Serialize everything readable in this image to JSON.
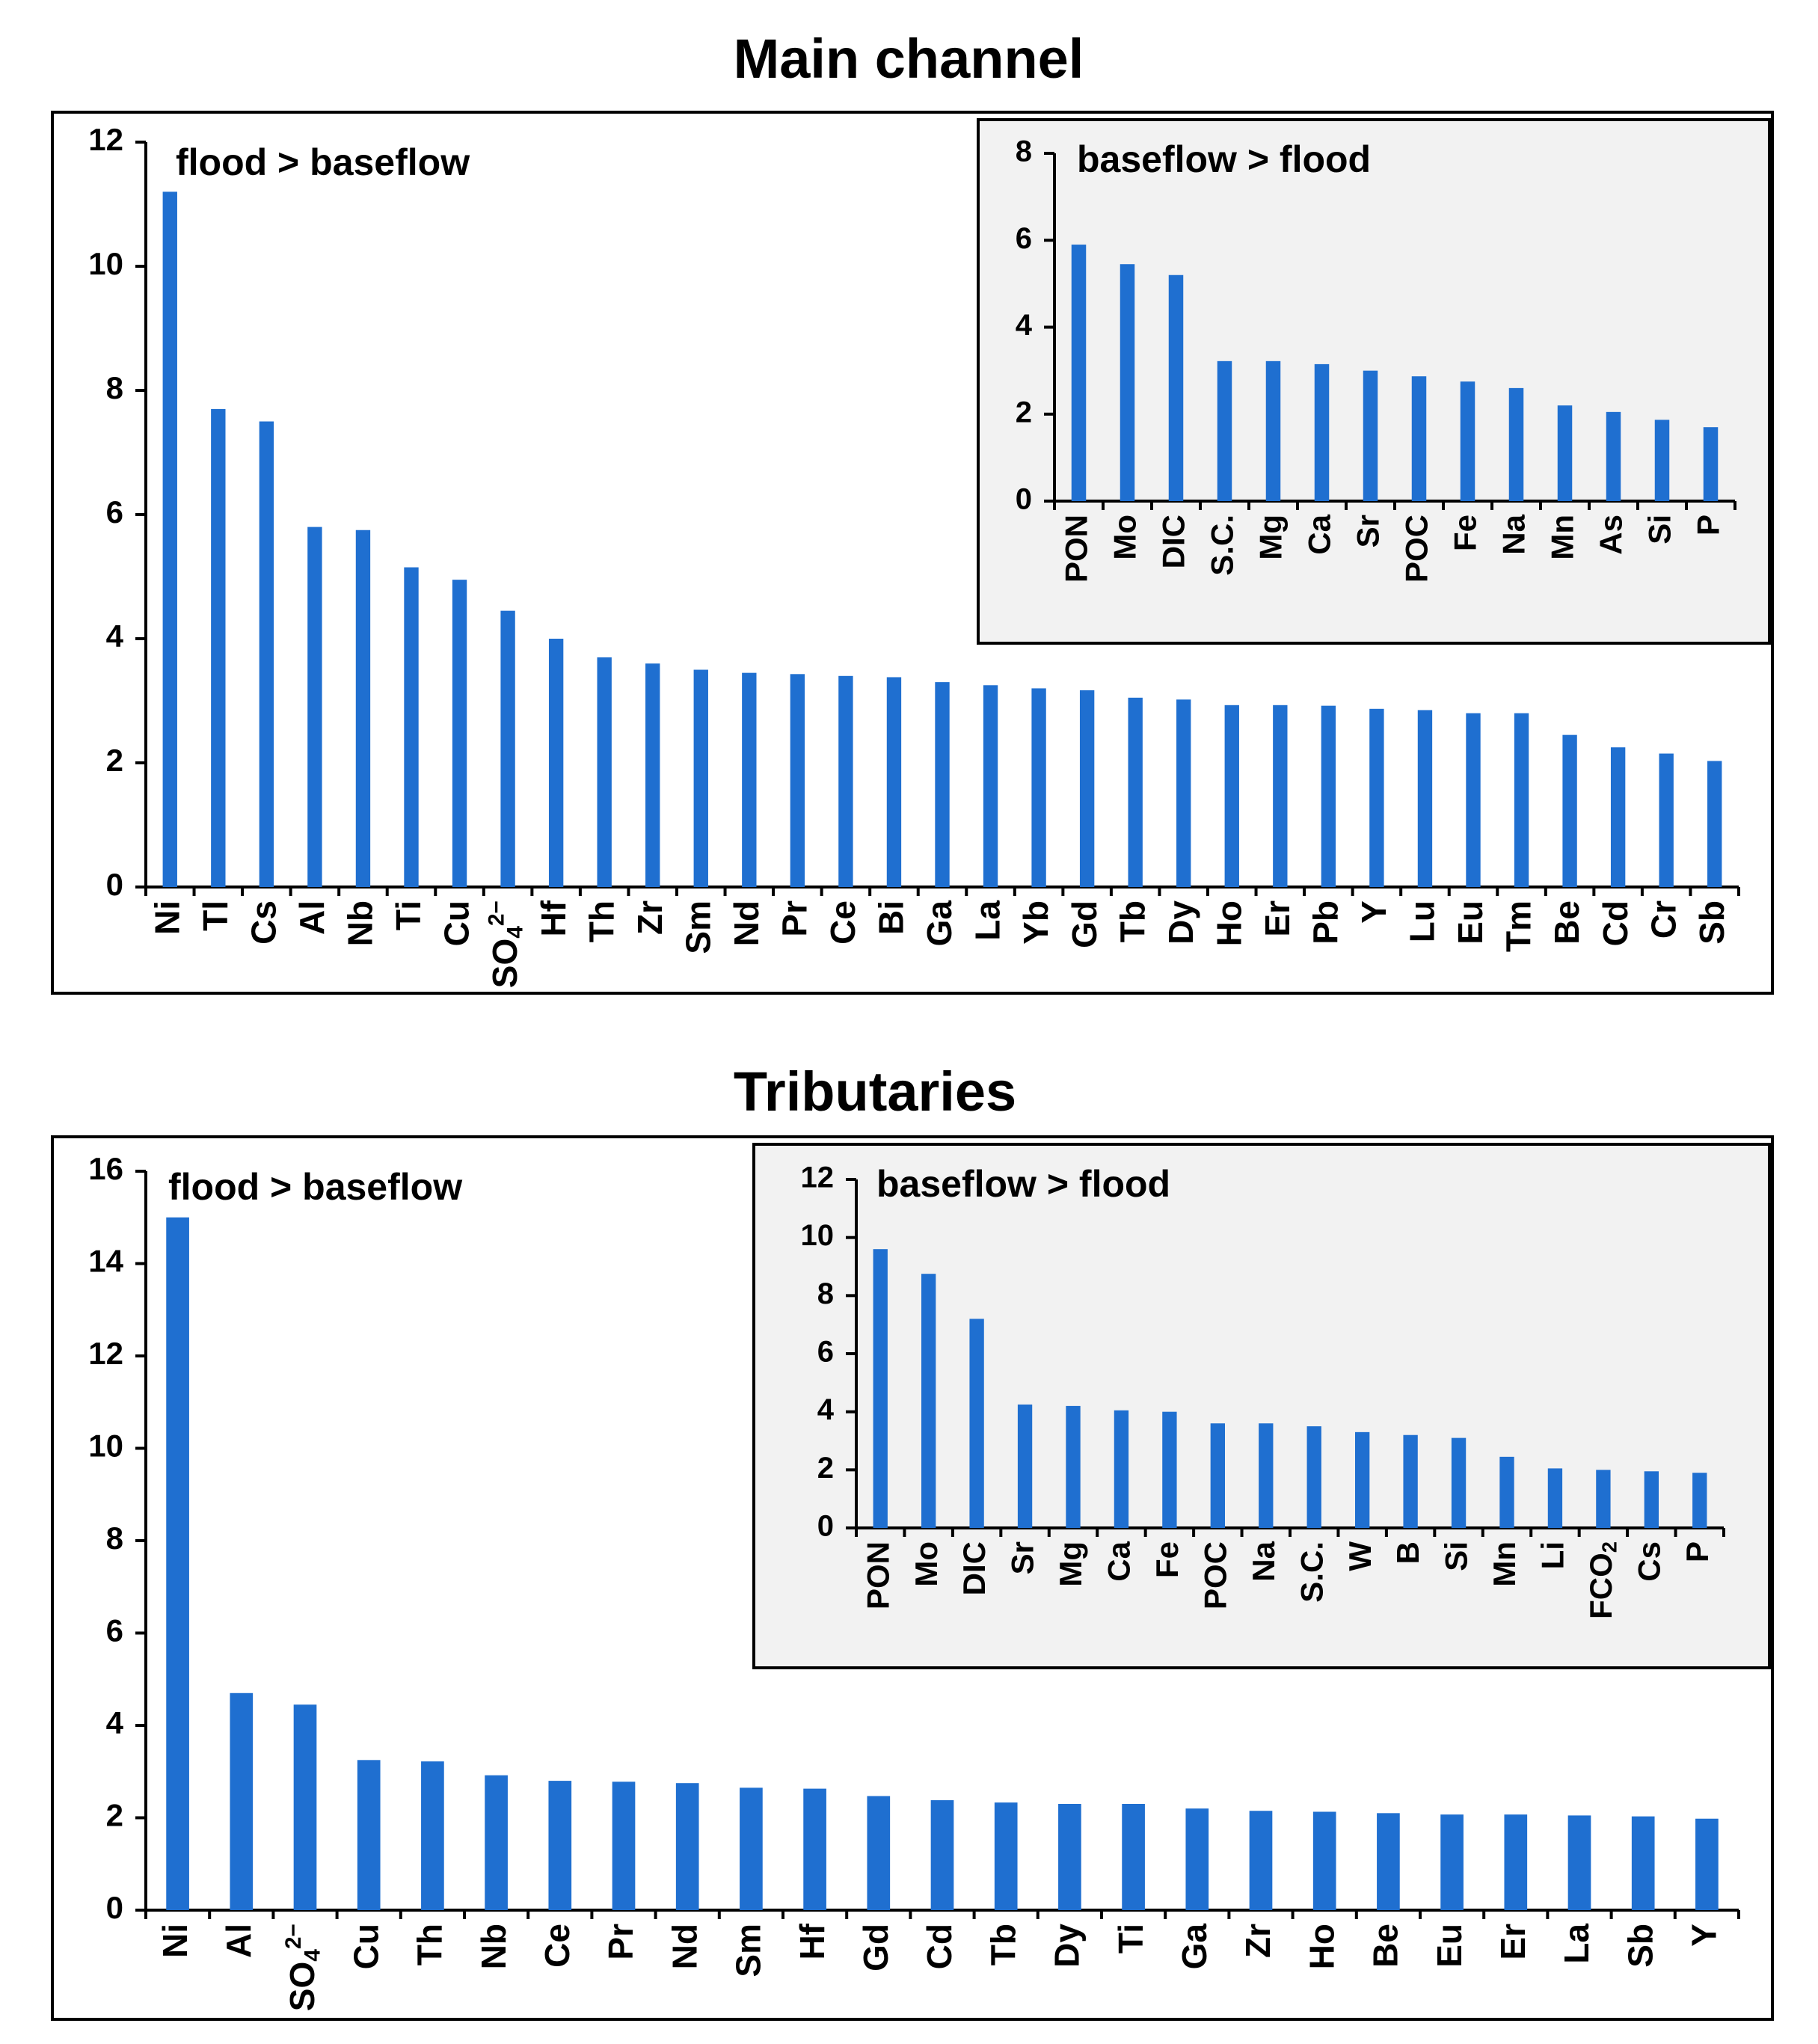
{
  "chart_data": [
    {
      "type": "bar",
      "title": "Main channel",
      "annotation": "flood > baseflow",
      "ylim": [
        0,
        12
      ],
      "yticks": [
        0,
        2,
        4,
        6,
        8,
        10,
        12
      ],
      "categories": [
        "Ni",
        "Tl",
        "Cs",
        "Al",
        "Nb",
        "Ti",
        "Cu",
        "SO4 2-",
        "Hf",
        "Th",
        "Zr",
        "Sm",
        "Nd",
        "Pr",
        "Ce",
        "Bi",
        "Ga",
        "La",
        "Yb",
        "Gd",
        "Tb",
        "Dy",
        "Ho",
        "Er",
        "Pb",
        "Y",
        "Lu",
        "Eu",
        "Tm",
        "Be",
        "Cd",
        "Cr",
        "Sb"
      ],
      "values": [
        11.2,
        7.7,
        7.5,
        5.8,
        5.75,
        5.15,
        4.95,
        4.45,
        4.0,
        3.7,
        3.6,
        3.5,
        3.45,
        3.43,
        3.4,
        3.38,
        3.3,
        3.25,
        3.2,
        3.17,
        3.05,
        3.02,
        2.93,
        2.93,
        2.92,
        2.87,
        2.85,
        2.8,
        2.8,
        2.45,
        2.25,
        2.15,
        2.03
      ],
      "xlabel": "",
      "ylabel": "",
      "inset": {
        "type": "bar",
        "annotation": "baseflow > flood",
        "ylim": [
          0,
          8
        ],
        "yticks": [
          0,
          2,
          4,
          6,
          8
        ],
        "categories": [
          "PON",
          "Mo",
          "DIC",
          "S.C.",
          "Mg",
          "Ca",
          "Sr",
          "POC",
          "Fe",
          "Na",
          "Mn",
          "As",
          "Si",
          "P"
        ],
        "values": [
          5.9,
          5.45,
          5.2,
          3.22,
          3.22,
          3.15,
          3.0,
          2.87,
          2.75,
          2.6,
          2.2,
          2.05,
          1.87,
          1.7
        ]
      }
    },
    {
      "type": "bar",
      "title": "Tributaries",
      "annotation": "flood > baseflow",
      "ylim": [
        0,
        16
      ],
      "yticks": [
        0,
        2,
        4,
        6,
        8,
        10,
        12,
        14,
        16
      ],
      "categories": [
        "Ni",
        "Al",
        "SO4 2-",
        "Cu",
        "Th",
        "Nb",
        "Ce",
        "Pr",
        "Nd",
        "Sm",
        "Hf",
        "Gd",
        "Cd",
        "Tb",
        "Dy",
        "Ti",
        "Ga",
        "Zr",
        "Ho",
        "Be",
        "Eu",
        "Er",
        "La",
        "Sb",
        "Y"
      ],
      "values": [
        15.0,
        4.7,
        4.45,
        3.25,
        3.22,
        2.92,
        2.8,
        2.78,
        2.75,
        2.65,
        2.63,
        2.47,
        2.38,
        2.33,
        2.3,
        2.3,
        2.2,
        2.15,
        2.13,
        2.1,
        2.07,
        2.07,
        2.05,
        2.03,
        1.98
      ],
      "xlabel": "",
      "ylabel": "",
      "inset": {
        "type": "bar",
        "annotation": "baseflow > flood",
        "ylim": [
          0,
          12
        ],
        "yticks": [
          0,
          2,
          4,
          6,
          8,
          10,
          12
        ],
        "categories": [
          "PON",
          "Mo",
          "DIC",
          "Sr",
          "Mg",
          "Ca",
          "Fe",
          "POC",
          "Na",
          "S.C.",
          "W",
          "B",
          "Si",
          "Mn",
          "Li",
          "FCO2",
          "Cs",
          "P"
        ],
        "values": [
          9.6,
          8.75,
          7.2,
          4.25,
          4.2,
          4.05,
          4.0,
          3.6,
          3.6,
          3.5,
          3.3,
          3.2,
          3.1,
          2.45,
          2.05,
          2.0,
          1.95,
          1.9
        ]
      }
    }
  ]
}
